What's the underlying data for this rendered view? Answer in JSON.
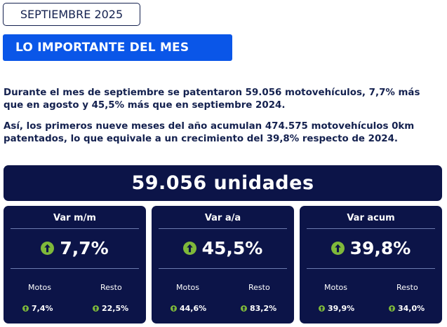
{
  "date_label": "SEPTIEMBRE 2025",
  "banner_title": "LO IMPORTANTE DEL MES",
  "paragraphs": [
    "Durante el mes de septiembre se patentaron 59.056 motovehículos, 7,7% más que en agosto y 45,5% más que en septiembre 2024.",
    "Así, los primeros nueve meses del año acumulan 474.575 motovehículos 0km patentados, lo que equivale a un crecimiento del 39,8% respecto de 2024."
  ],
  "total": "59.056 unidades",
  "colors": {
    "navy": "#0c1448",
    "banner_blue": "#0a56e8",
    "up_green": "#7fb93a"
  },
  "cards": [
    {
      "title": "Var m/m",
      "icon": "up-arrow-icon",
      "value": "7,7%",
      "left_label": "Motos",
      "left_value": "7,4%",
      "right_label": "Resto",
      "right_value": "22,5%"
    },
    {
      "title": "Var a/a",
      "icon": "up-arrow-icon",
      "value": "45,5%",
      "left_label": "Motos",
      "left_value": "44,6%",
      "right_label": "Resto",
      "right_value": "83,2%"
    },
    {
      "title": "Var acum",
      "icon": "up-arrow-icon",
      "value": "39,8%",
      "left_label": "Motos",
      "left_value": "39,9%",
      "right_label": "Resto",
      "right_value": "34,0%"
    }
  ]
}
